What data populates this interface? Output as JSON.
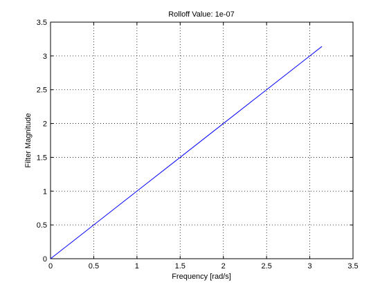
{
  "chart_data": {
    "type": "line",
    "title": "Rolloff Value: 1e-07",
    "xlabel": "Frequency [rad/s]",
    "ylabel": "Filter Magnitude",
    "xlim": [
      0,
      3.5
    ],
    "ylim": [
      0,
      3.5
    ],
    "xticks": [
      0,
      0.5,
      1,
      1.5,
      2,
      2.5,
      3,
      3.5
    ],
    "yticks": [
      0,
      0.5,
      1,
      1.5,
      2,
      2.5,
      3,
      3.5
    ],
    "xtick_labels": [
      "0",
      "0.5",
      "1",
      "1.5",
      "2",
      "2.5",
      "3",
      "3.5"
    ],
    "ytick_labels": [
      "0",
      "0.5",
      "1",
      "1.5",
      "2",
      "2.5",
      "3",
      "3.5"
    ],
    "grid": true,
    "series": [
      {
        "color": "#0000ff",
        "x": [
          0,
          0.5,
          1,
          1.5,
          2,
          2.5,
          3,
          3.14
        ],
        "y": [
          0,
          0.5,
          1,
          1.5,
          2,
          2.5,
          3,
          3.14
        ]
      }
    ]
  }
}
